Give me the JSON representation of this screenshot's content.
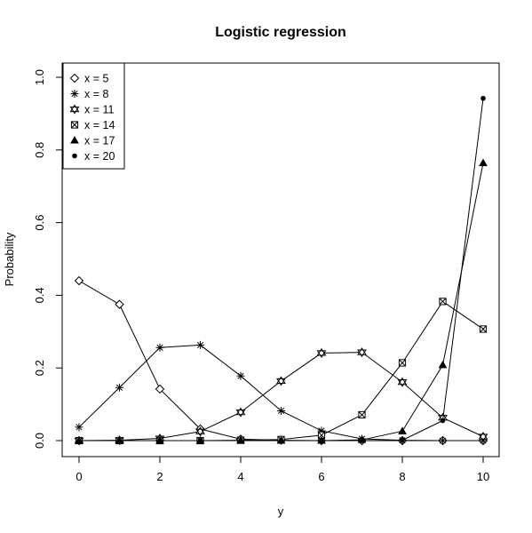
{
  "chart_data": {
    "type": "line",
    "title": "Logistic regression",
    "xlabel": "y",
    "ylabel": "Probability",
    "xlim": [
      0,
      10
    ],
    "ylim": [
      0,
      1
    ],
    "xticks": [
      "0",
      "2",
      "4",
      "6",
      "8",
      "10"
    ],
    "yticks": [
      "0.0",
      "0.2",
      "0.4",
      "0.6",
      "0.8",
      "1.0"
    ],
    "grid": false,
    "legend_position": "top-left",
    "x": [
      0,
      1,
      2,
      3,
      4,
      5,
      6,
      7,
      8,
      9,
      10
    ],
    "series": [
      {
        "name": "x = 5",
        "marker": "diamond",
        "values": [
          0.44,
          0.375,
          0.142,
          0.032,
          0.004,
          0.001,
          0.0,
          0.0,
          0.0,
          0.0,
          0.0
        ]
      },
      {
        "name": "x = 8",
        "marker": "asterisk",
        "values": [
          0.037,
          0.146,
          0.256,
          0.263,
          0.178,
          0.082,
          0.027,
          0.005,
          0.001,
          0.0,
          0.0
        ]
      },
      {
        "name": "x = 11",
        "marker": "hourglass",
        "values": [
          0.0,
          0.001,
          0.006,
          0.025,
          0.078,
          0.164,
          0.241,
          0.243,
          0.161,
          0.063,
          0.011
        ]
      },
      {
        "name": "x = 14",
        "marker": "square",
        "values": [
          0.0,
          0.0,
          0.0,
          0.0,
          0.001,
          0.003,
          0.015,
          0.071,
          0.214,
          0.383,
          0.307
        ]
      },
      {
        "name": "x = 17",
        "marker": "triangle",
        "values": [
          0.0,
          0.0,
          0.0,
          0.0,
          0.0,
          0.0,
          0.0,
          0.002,
          0.026,
          0.208,
          0.764
        ]
      },
      {
        "name": "x = 20",
        "marker": "dot",
        "values": [
          0.0,
          0.0,
          0.0,
          0.0,
          0.0,
          0.0,
          0.0,
          0.0,
          0.001,
          0.055,
          0.942
        ]
      }
    ]
  }
}
